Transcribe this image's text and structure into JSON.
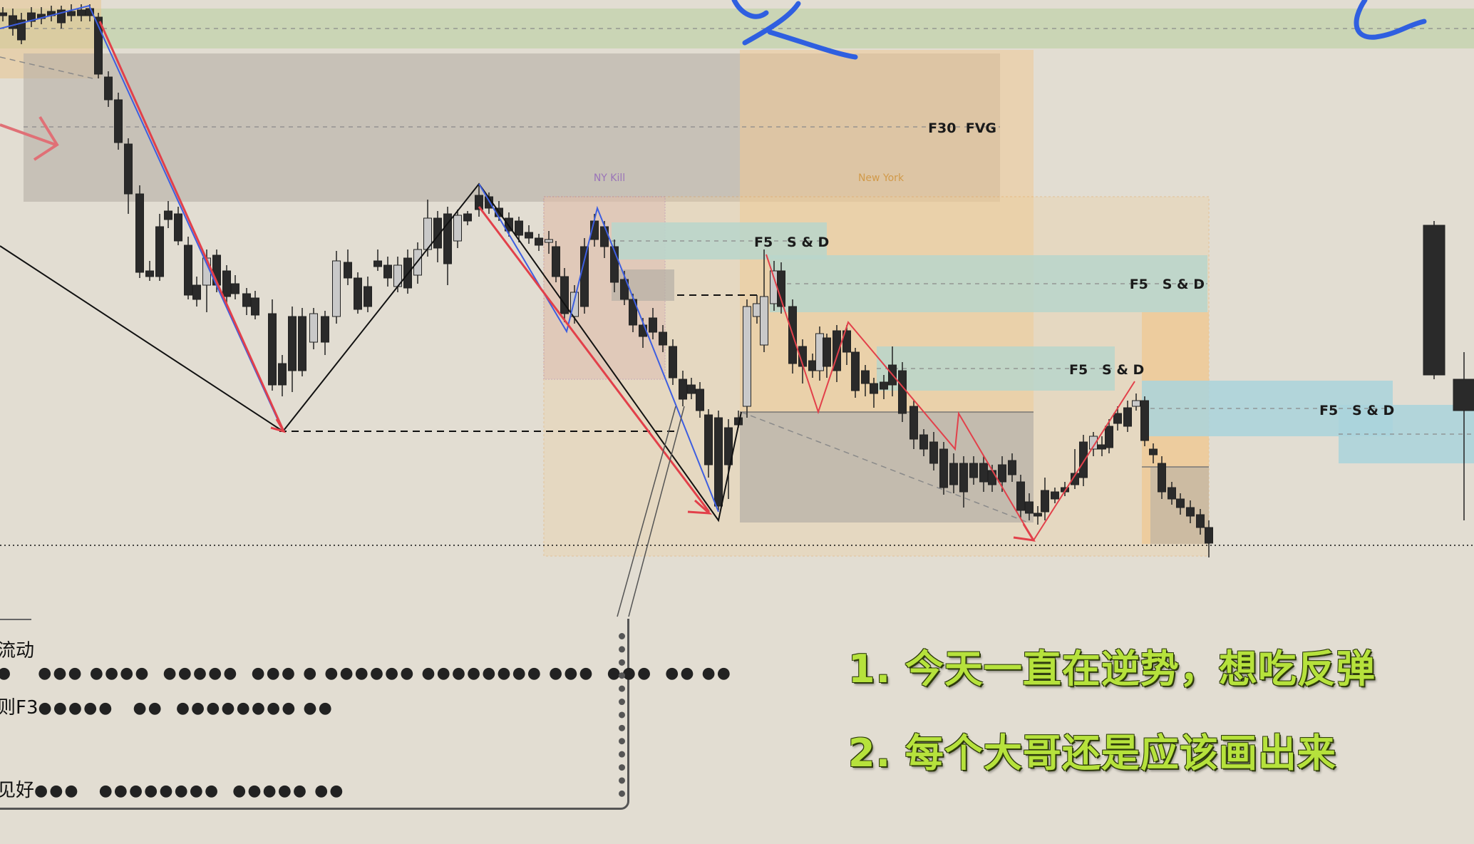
{
  "chart_data": {
    "type": "candlestick",
    "title": "",
    "xlabel": "",
    "ylabel": "",
    "zones": [
      {
        "label": "F30  FVG",
        "kind": "fvg"
      },
      {
        "label": "F5   S & D",
        "kind": "supply_demand"
      },
      {
        "label": "F5   S & D",
        "kind": "supply_demand"
      },
      {
        "label": "F5   S & D",
        "kind": "supply_demand"
      },
      {
        "label": "F5   S & D",
        "kind": "supply_demand"
      }
    ],
    "sessions": [
      {
        "label": "NY Kill"
      },
      {
        "label": "New York"
      }
    ],
    "colors": {
      "background": "#e2ddd2",
      "green_zone": "#c6d3b0",
      "gray_zone": "#b9b3a9",
      "orange_zone": "#efc995",
      "teal_zone": "#b9d6cb",
      "cyan_zone": "#a9d3dc",
      "red_line": "#e2404a",
      "blue_line": "#3d5ee0",
      "bull_candle": "#c9c9c9",
      "bear_candle": "#2a2a2a",
      "note_text": "#b6e23c"
    }
  },
  "annotations": {
    "notes": [
      "1. 今天一直在逆势，想吃反弹",
      "2. 每个大哥还是应该画出来"
    ],
    "comments": [
      {
        "prefix": "流动"
      },
      {
        "prefix": "则F3"
      },
      {
        "prefix": "见好"
      }
    ]
  }
}
